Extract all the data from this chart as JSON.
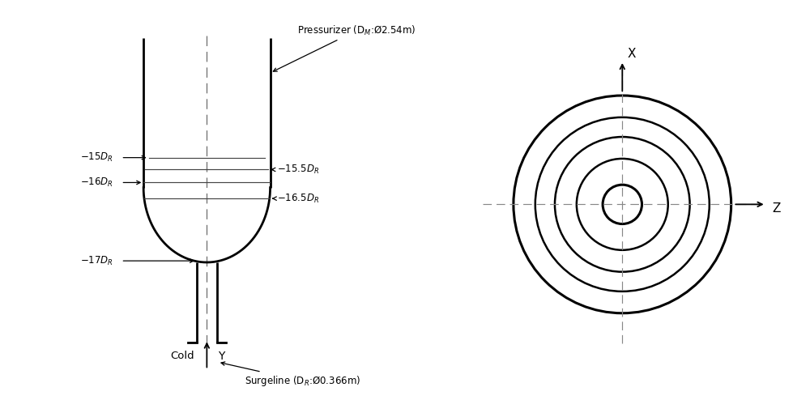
{
  "bg_color": "#ffffff",
  "line_color": "#000000",
  "dashed_color": "#888888",
  "pressurizer_label": "Pressurizer (D_M:Ø2.54m)",
  "surgeline_label": "Surgeline (D_R:Ø0.366m)",
  "cold_label": "Cold",
  "y_label": "Y",
  "x_label": "X",
  "z_label": "Z",
  "circle_radii": [
    0.18,
    0.42,
    0.62,
    0.8,
    1.0
  ],
  "circle_lws": [
    2.2,
    1.8,
    1.8,
    1.8,
    2.2
  ]
}
